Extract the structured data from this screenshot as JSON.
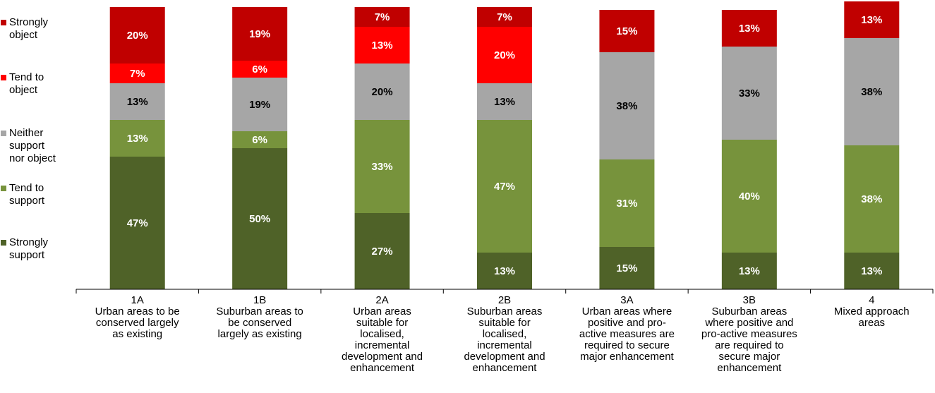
{
  "chart_data": {
    "type": "stacked_bar",
    "categories": [
      [
        "1A",
        "Urban areas to be",
        "conserved largely",
        "as existing"
      ],
      [
        "1B",
        "Suburban areas to",
        "be conserved",
        "largely as existing"
      ],
      [
        "2A",
        "Urban areas",
        "suitable for",
        "localised,",
        "incremental",
        "development and",
        "enhancement"
      ],
      [
        "2B",
        "Suburban areas",
        "suitable for",
        "localised,",
        "incremental",
        "development and",
        "enhancement"
      ],
      [
        "3A",
        "Urban areas where",
        "positive and pro-",
        "active measures are",
        "required to secure",
        "major enhancement"
      ],
      [
        "3B",
        "Suburban areas",
        "where positive and",
        "pro-active measures",
        "are required to",
        "secure major",
        "enhancement"
      ],
      [
        "4",
        "Mixed approach",
        "areas"
      ]
    ],
    "series": [
      {
        "name": "Strongly support",
        "color": "#4f6228",
        "label_color": "#ffffff",
        "values": [
          47,
          50,
          27,
          13,
          15,
          13,
          13
        ],
        "value_labels": [
          "47%",
          "50%",
          "27%",
          "13%",
          "15%",
          "13%",
          "13%"
        ]
      },
      {
        "name": "Tend to support",
        "color": "#77933c",
        "label_color": "#ffffff",
        "values": [
          13,
          6,
          33,
          47,
          31,
          40,
          38
        ],
        "value_labels": [
          "13%",
          "6%",
          "33%",
          "47%",
          "31%",
          "40%",
          "38%"
        ]
      },
      {
        "name": "Neither support nor object",
        "color": "#a6a6a6",
        "label_color": "#000000",
        "values": [
          13,
          19,
          20,
          13,
          38,
          33,
          38
        ],
        "value_labels": [
          "13%",
          "19%",
          "20%",
          "13%",
          "38%",
          "33%",
          "38%"
        ]
      },
      {
        "name": "Tend to object",
        "color": "#ff0000",
        "label_color": "#ffffff",
        "values": [
          7,
          6,
          13,
          20,
          null,
          null,
          null
        ],
        "value_labels": [
          "7%",
          "6%",
          "13%",
          "20%",
          null,
          null,
          null
        ]
      },
      {
        "name": "Strongly object",
        "color": "#c00000",
        "label_color": "#ffffff",
        "values": [
          20,
          19,
          7,
          7,
          15,
          13,
          13
        ],
        "value_labels": [
          "20%",
          "19%",
          "7%",
          "7%",
          "15%",
          "13%",
          "13%"
        ]
      }
    ],
    "ylim": [
      0,
      100
    ],
    "legend": "left"
  }
}
